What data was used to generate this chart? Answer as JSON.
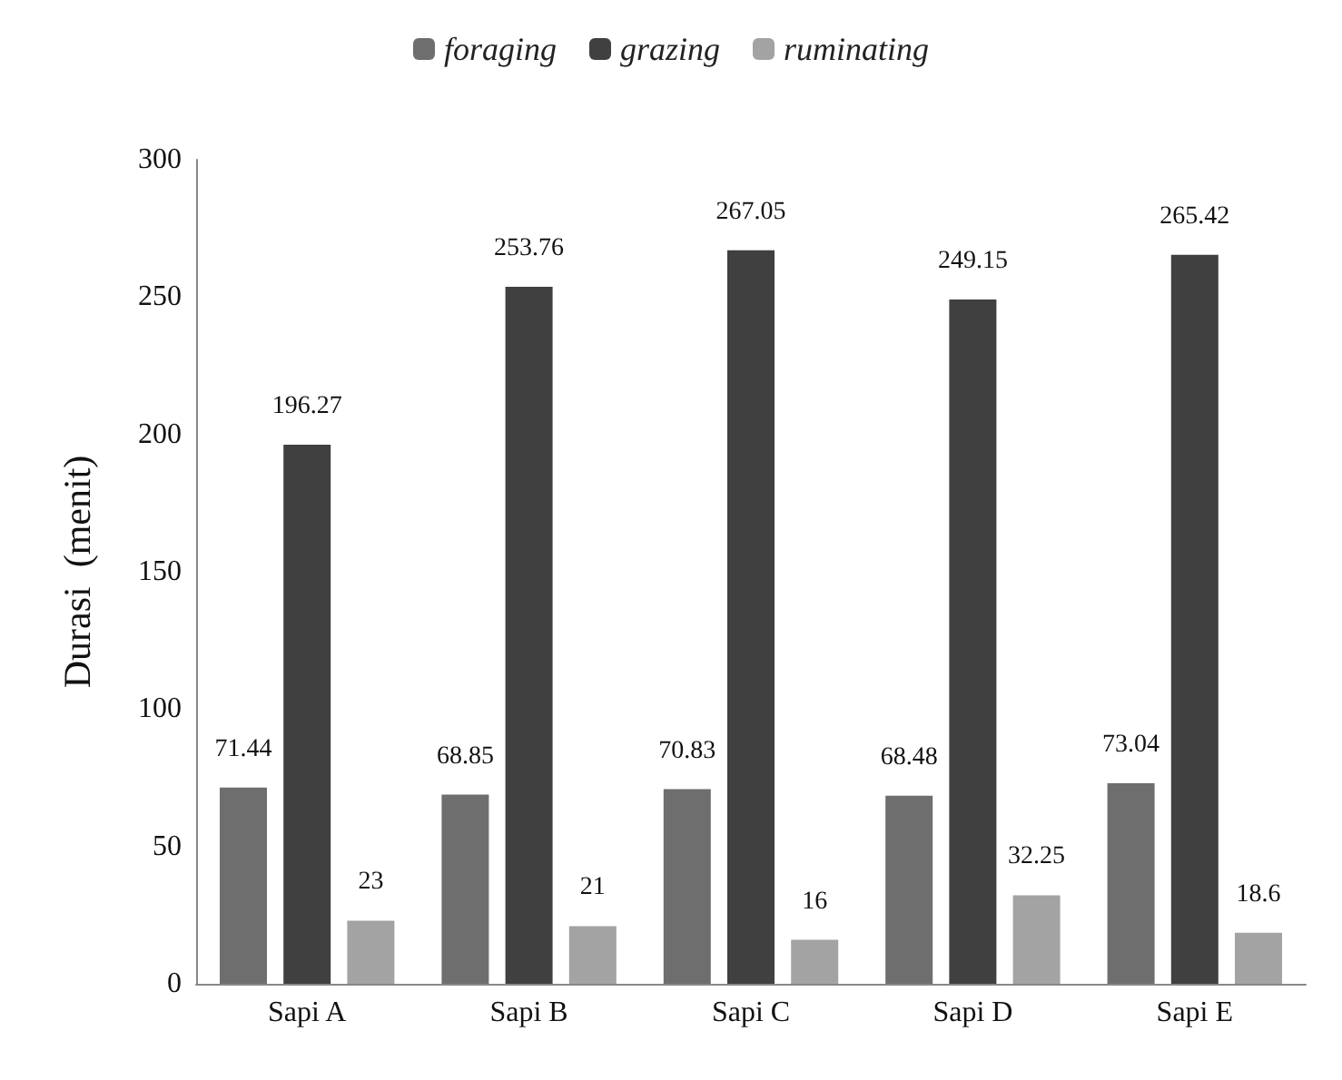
{
  "chart_data": {
    "type": "bar",
    "ylabel": "Durasi  (menit)",
    "categories": [
      "Sapi A",
      "Sapi B",
      "Sapi C",
      "Sapi D",
      "Sapi E"
    ],
    "series": [
      {
        "name": "foraging",
        "color": "#6e6e6e",
        "values": [
          71.44,
          68.85,
          70.83,
          68.48,
          73.04
        ]
      },
      {
        "name": "grazing",
        "color": "#404040",
        "values": [
          196.27,
          253.76,
          267.05,
          249.15,
          265.42
        ]
      },
      {
        "name": "ruminating",
        "color": "#a3a3a3",
        "values": [
          23,
          21,
          16,
          32.25,
          18.6
        ]
      }
    ],
    "ylim": [
      0,
      300
    ],
    "yticks": [
      0,
      50,
      100,
      150,
      200,
      250,
      300
    ],
    "grid": false,
    "legend": "top",
    "data_labels": true
  }
}
